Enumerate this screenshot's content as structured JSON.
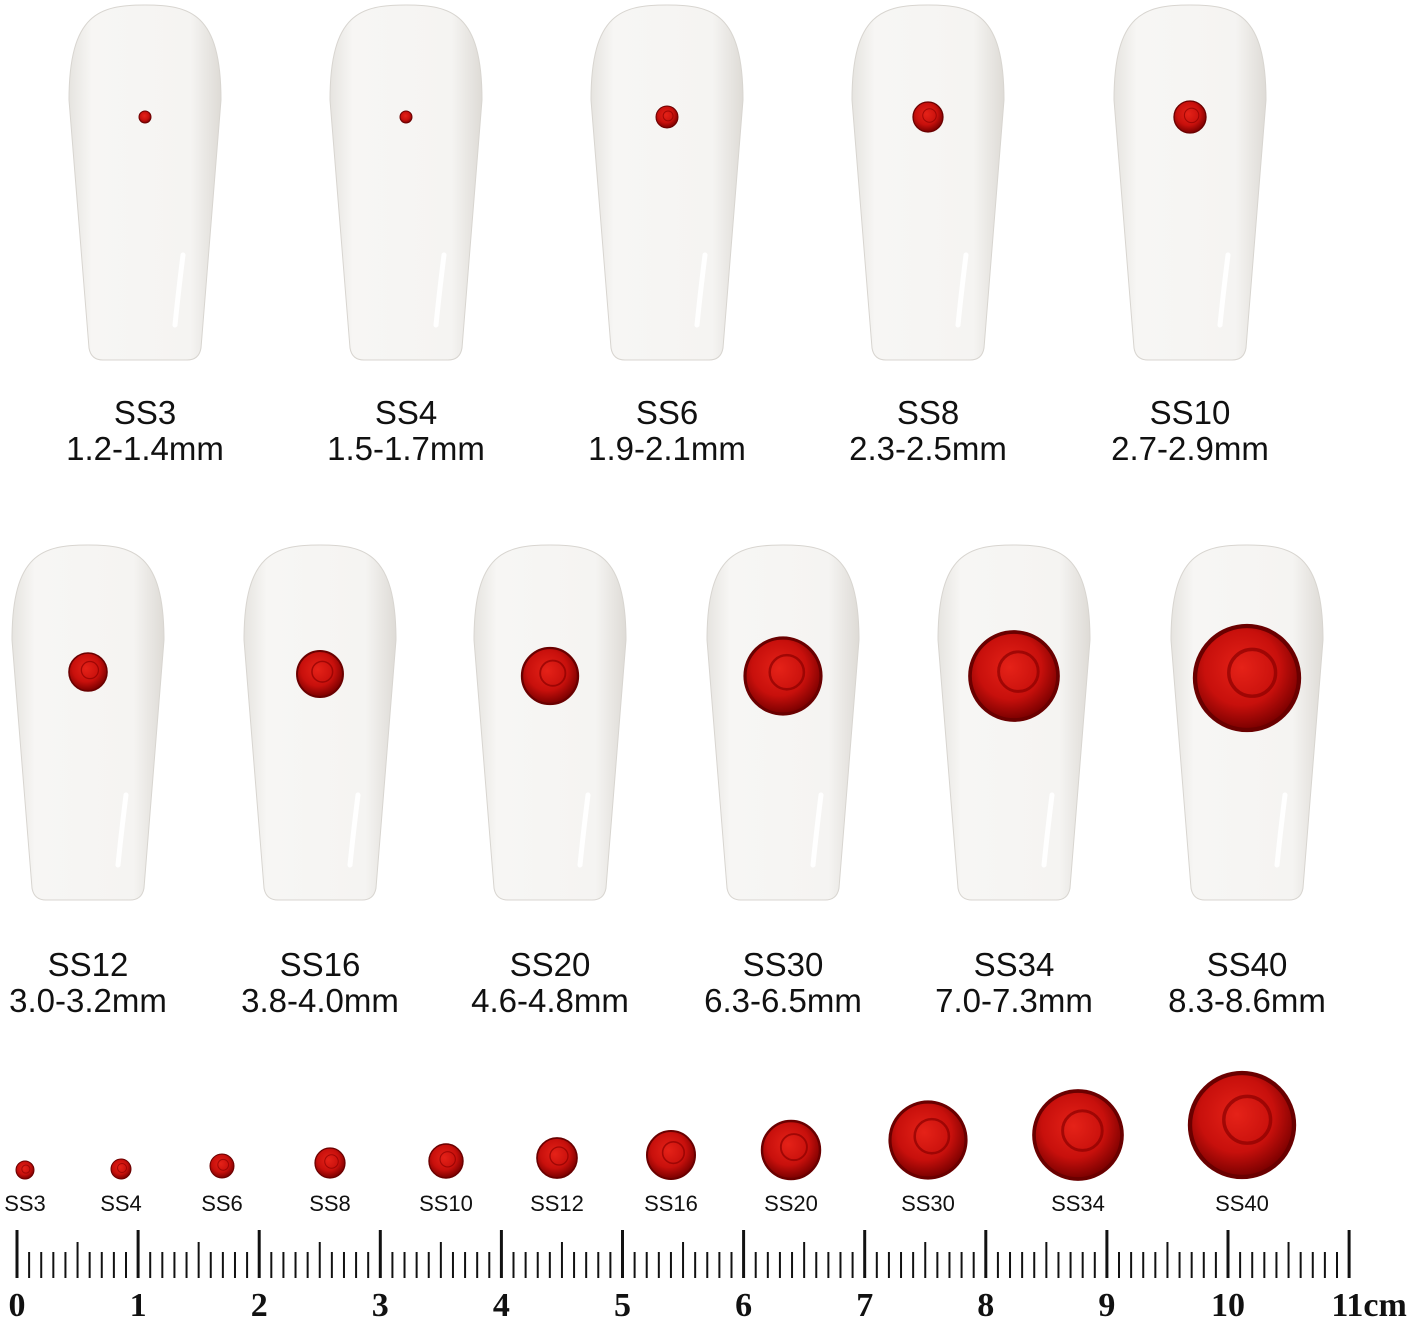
{
  "nails_top": [
    {
      "size": "SS3",
      "mm": "1.2-1.4mm"
    },
    {
      "size": "SS4",
      "mm": "1.5-1.7mm"
    },
    {
      "size": "SS6",
      "mm": "1.9-2.1mm"
    },
    {
      "size": "SS8",
      "mm": "2.3-2.5mm"
    },
    {
      "size": "SS10",
      "mm": "2.7-2.9mm"
    }
  ],
  "nails_bottom": [
    {
      "size": "SS12",
      "mm": "3.0-3.2mm"
    },
    {
      "size": "SS16",
      "mm": "3.8-4.0mm"
    },
    {
      "size": "SS20",
      "mm": "4.6-4.8mm"
    },
    {
      "size": "SS30",
      "mm": "6.3-6.5mm"
    },
    {
      "size": "SS34",
      "mm": "7.0-7.3mm"
    },
    {
      "size": "SS40",
      "mm": "8.3-8.6mm"
    }
  ],
  "stones": [
    "SS3",
    "SS4",
    "SS6",
    "SS8",
    "SS10",
    "SS12",
    "SS16",
    "SS20",
    "SS30",
    "SS34",
    "SS40"
  ],
  "ruler": [
    "0",
    "1",
    "2",
    "3",
    "4",
    "5",
    "6",
    "7",
    "8",
    "9",
    "10",
    "11cm"
  ]
}
